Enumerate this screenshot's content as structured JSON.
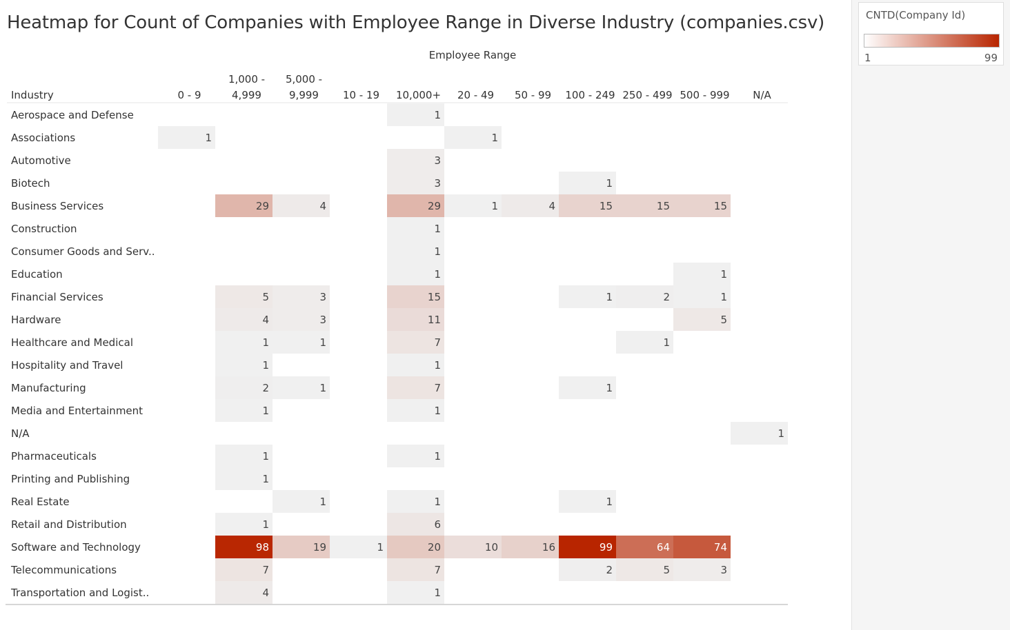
{
  "chart_data": {
    "type": "heatmap",
    "title": "Heatmap for Count of Companies with Employee Range in Diverse Industry (companies.csv)",
    "column_axis_label": "Employee Range",
    "row_axis_label": "Industry",
    "columns": [
      "0 - 9",
      "1,000 - 4,999",
      "5,000 - 9,999",
      "10 - 19",
      "10,000+",
      "20 - 49",
      "50 - 99",
      "100 - 249",
      "250 - 499",
      "500 - 999",
      "N/A"
    ],
    "rows": [
      {
        "label": "Aerospace and Defense",
        "values": [
          null,
          null,
          null,
          null,
          1,
          null,
          null,
          null,
          null,
          null,
          null
        ]
      },
      {
        "label": "Associations",
        "values": [
          1,
          null,
          null,
          null,
          null,
          1,
          null,
          null,
          null,
          null,
          null
        ]
      },
      {
        "label": "Automotive",
        "values": [
          null,
          null,
          null,
          null,
          3,
          null,
          null,
          null,
          null,
          null,
          null
        ]
      },
      {
        "label": "Biotech",
        "values": [
          null,
          null,
          null,
          null,
          3,
          null,
          null,
          1,
          null,
          null,
          null
        ]
      },
      {
        "label": "Business Services",
        "values": [
          null,
          29,
          4,
          null,
          29,
          1,
          4,
          15,
          15,
          15,
          null
        ]
      },
      {
        "label": "Construction",
        "values": [
          null,
          null,
          null,
          null,
          1,
          null,
          null,
          null,
          null,
          null,
          null
        ]
      },
      {
        "label": "Consumer Goods and Serv..",
        "values": [
          null,
          null,
          null,
          null,
          1,
          null,
          null,
          null,
          null,
          null,
          null
        ]
      },
      {
        "label": "Education",
        "values": [
          null,
          null,
          null,
          null,
          1,
          null,
          null,
          null,
          null,
          1,
          null
        ]
      },
      {
        "label": "Financial Services",
        "values": [
          null,
          5,
          3,
          null,
          15,
          null,
          null,
          1,
          2,
          1,
          null
        ]
      },
      {
        "label": "Hardware",
        "values": [
          null,
          4,
          3,
          null,
          11,
          null,
          null,
          null,
          null,
          5,
          null
        ]
      },
      {
        "label": "Healthcare and Medical",
        "values": [
          null,
          1,
          1,
          null,
          7,
          null,
          null,
          null,
          1,
          null,
          null
        ]
      },
      {
        "label": "Hospitality and Travel",
        "values": [
          null,
          1,
          null,
          null,
          1,
          null,
          null,
          null,
          null,
          null,
          null
        ]
      },
      {
        "label": "Manufacturing",
        "values": [
          null,
          2,
          1,
          null,
          7,
          null,
          null,
          1,
          null,
          null,
          null
        ]
      },
      {
        "label": "Media and Entertainment",
        "values": [
          null,
          1,
          null,
          null,
          1,
          null,
          null,
          null,
          null,
          null,
          null
        ]
      },
      {
        "label": "N/A",
        "values": [
          null,
          null,
          null,
          null,
          null,
          null,
          null,
          null,
          null,
          null,
          1
        ]
      },
      {
        "label": "Pharmaceuticals",
        "values": [
          null,
          1,
          null,
          null,
          1,
          null,
          null,
          null,
          null,
          null,
          null
        ]
      },
      {
        "label": "Printing and Publishing",
        "values": [
          null,
          1,
          null,
          null,
          null,
          null,
          null,
          null,
          null,
          null,
          null
        ]
      },
      {
        "label": "Real Estate",
        "values": [
          null,
          null,
          1,
          null,
          1,
          null,
          null,
          1,
          null,
          null,
          null
        ]
      },
      {
        "label": "Retail and Distribution",
        "values": [
          null,
          1,
          null,
          null,
          6,
          null,
          null,
          null,
          null,
          null,
          null
        ]
      },
      {
        "label": "Software and Technology",
        "values": [
          null,
          98,
          19,
          1,
          20,
          10,
          16,
          99,
          64,
          74,
          null
        ]
      },
      {
        "label": "Telecommunications",
        "values": [
          null,
          7,
          null,
          null,
          7,
          null,
          null,
          2,
          5,
          3,
          null
        ]
      },
      {
        "label": "Transportation and Logist..",
        "values": [
          null,
          4,
          null,
          null,
          1,
          null,
          null,
          null,
          null,
          null,
          null
        ]
      }
    ],
    "color_scale": {
      "min": 1,
      "max": 99,
      "min_color": "#f0f0f0",
      "max_color": "#b82500"
    }
  },
  "legend": {
    "title": "CNTD(Company Id)",
    "min_label": "1",
    "max_label": "99"
  }
}
